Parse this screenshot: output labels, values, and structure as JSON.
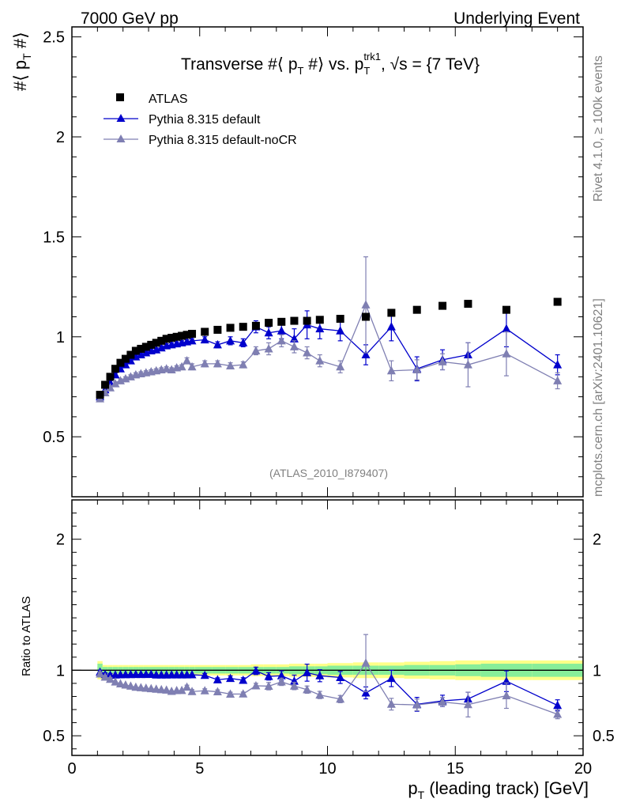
{
  "header": {
    "left": "7000 GeV pp",
    "right": "Underlying Event"
  },
  "side_labels": {
    "top": "Rivet 4.1.0, ≥ 100k events",
    "bottom": "mcplots.cern.ch [arXiv:2401.10621]"
  },
  "chart_data": {
    "type": "scatter",
    "title": "Transverse #⟨ p_T #⟩ vs. p_T^trk1, √s = {7 TeV}",
    "title_parts": {
      "a": "Transverse #⟨ p",
      "a_sub": "T",
      "b": " #⟩ vs. p",
      "b_sub": "T",
      "b_sup": "trk1",
      "c": ", √s = {7 TeV}"
    },
    "ylabel": {
      "a": "#⟨ p",
      "sub": "T",
      "b": " #⟩"
    },
    "ratio_ylabel": "Ratio to ATLAS",
    "xlabel": {
      "a": "p",
      "sub": "T",
      "b": " (leading track) [GeV]"
    },
    "xlim": [
      0,
      20
    ],
    "ylim": [
      0.2,
      2.55
    ],
    "ratio_ylim": [
      0.35,
      2.3
    ],
    "xticks": [
      0,
      5,
      10,
      15,
      20
    ],
    "yticks": [
      0.5,
      1,
      1.5,
      2,
      2.5
    ],
    "ratio_yticks": [
      0.5,
      1,
      2
    ],
    "analysis_tag": "(ATLAS_2010_I879407)",
    "legend_position": "top-left",
    "series": [
      {
        "name": "ATLAS",
        "color": "#000000",
        "marker": "square",
        "x": [
          1.1,
          1.3,
          1.5,
          1.7,
          1.9,
          2.1,
          2.3,
          2.5,
          2.7,
          2.9,
          3.1,
          3.3,
          3.5,
          3.7,
          3.9,
          4.1,
          4.3,
          4.5,
          4.7,
          5.2,
          5.7,
          6.2,
          6.7,
          7.2,
          7.7,
          8.2,
          8.7,
          9.2,
          9.7,
          10.5,
          11.5,
          12.5,
          13.5,
          14.5,
          15.5,
          17.0,
          19.0
        ],
        "y": [
          0.71,
          0.76,
          0.8,
          0.84,
          0.87,
          0.89,
          0.91,
          0.93,
          0.94,
          0.95,
          0.96,
          0.97,
          0.98,
          0.99,
          0.995,
          1.0,
          1.005,
          1.01,
          1.015,
          1.025,
          1.035,
          1.045,
          1.05,
          1.055,
          1.07,
          1.075,
          1.08,
          1.08,
          1.085,
          1.09,
          1.1,
          1.12,
          1.135,
          1.155,
          1.165,
          1.135,
          1.175
        ]
      },
      {
        "name": "Pythia 8.315 default",
        "color": "#0000cc",
        "marker": "triangle",
        "x": [
          1.1,
          1.3,
          1.5,
          1.7,
          1.9,
          2.1,
          2.3,
          2.5,
          2.7,
          2.9,
          3.1,
          3.3,
          3.5,
          3.7,
          3.9,
          4.1,
          4.3,
          4.5,
          4.7,
          5.2,
          5.7,
          6.2,
          6.7,
          7.2,
          7.7,
          8.2,
          8.7,
          9.2,
          9.7,
          10.5,
          11.5,
          12.5,
          13.5,
          14.5,
          15.5,
          17.0,
          19.0
        ],
        "y": [
          0.7,
          0.735,
          0.77,
          0.81,
          0.84,
          0.86,
          0.88,
          0.9,
          0.91,
          0.92,
          0.93,
          0.935,
          0.945,
          0.955,
          0.96,
          0.965,
          0.97,
          0.975,
          0.98,
          0.985,
          0.96,
          0.98,
          0.97,
          1.05,
          1.02,
          1.03,
          0.99,
          1.06,
          1.04,
          1.03,
          0.91,
          1.05,
          0.84,
          0.885,
          0.91,
          1.04,
          0.86
        ],
        "err": [
          0.01,
          0.01,
          0.01,
          0.01,
          0.01,
          0.01,
          0.01,
          0.01,
          0.01,
          0.01,
          0.01,
          0.01,
          0.01,
          0.01,
          0.01,
          0.01,
          0.01,
          0.01,
          0.01,
          0.015,
          0.015,
          0.02,
          0.02,
          0.03,
          0.03,
          0.04,
          0.05,
          0.07,
          0.05,
          0.05,
          0.05,
          0.07,
          0.06,
          0.05,
          0.06,
          0.09,
          0.05
        ]
      },
      {
        "name": "Pythia 8.315 default-noCR",
        "color": "#7f7fb2",
        "marker": "triangle",
        "x": [
          1.1,
          1.3,
          1.5,
          1.7,
          1.9,
          2.1,
          2.3,
          2.5,
          2.7,
          2.9,
          3.1,
          3.3,
          3.5,
          3.7,
          3.9,
          4.1,
          4.3,
          4.5,
          4.7,
          5.2,
          5.7,
          6.2,
          6.7,
          7.2,
          7.7,
          8.2,
          8.7,
          9.2,
          9.7,
          10.5,
          11.5,
          12.5,
          13.5,
          14.5,
          15.5,
          17.0,
          19.0
        ],
        "y": [
          0.69,
          0.72,
          0.745,
          0.765,
          0.78,
          0.79,
          0.8,
          0.81,
          0.815,
          0.82,
          0.825,
          0.83,
          0.835,
          0.84,
          0.835,
          0.845,
          0.85,
          0.88,
          0.85,
          0.865,
          0.865,
          0.855,
          0.86,
          0.93,
          0.94,
          0.98,
          0.95,
          0.92,
          0.88,
          0.85,
          1.16,
          0.83,
          0.835,
          0.875,
          0.86,
          0.915,
          0.78
        ],
        "err": [
          0.01,
          0.01,
          0.01,
          0.01,
          0.01,
          0.01,
          0.01,
          0.01,
          0.01,
          0.01,
          0.01,
          0.01,
          0.01,
          0.01,
          0.01,
          0.01,
          0.01,
          0.015,
          0.015,
          0.015,
          0.015,
          0.015,
          0.015,
          0.02,
          0.03,
          0.03,
          0.03,
          0.03,
          0.03,
          0.03,
          0.24,
          0.05,
          0.05,
          0.04,
          0.11,
          0.11,
          0.04
        ]
      }
    ],
    "ratio_band": {
      "x_edges": [
        1.0,
        1.2,
        1.4,
        1.6,
        1.8,
        2.0,
        2.2,
        2.4,
        2.6,
        2.8,
        3.0,
        3.2,
        3.4,
        3.6,
        3.8,
        4.0,
        4.2,
        4.4,
        4.6,
        4.8,
        5.5,
        6.0,
        6.5,
        7.0,
        7.5,
        8.0,
        8.5,
        9.0,
        9.5,
        10.0,
        11.0,
        12.0,
        13.0,
        14.0,
        15.0,
        16.0,
        18.0,
        20.0
      ],
      "green_half": [
        0.05,
        0.025,
        0.025,
        0.025,
        0.025,
        0.025,
        0.025,
        0.025,
        0.025,
        0.025,
        0.025,
        0.025,
        0.025,
        0.025,
        0.025,
        0.025,
        0.025,
        0.025,
        0.025,
        0.025,
        0.025,
        0.025,
        0.025,
        0.025,
        0.025,
        0.025,
        0.03,
        0.03,
        0.03,
        0.035,
        0.035,
        0.035,
        0.04,
        0.04,
        0.045,
        0.05,
        0.05
      ],
      "yellow_half": [
        0.07,
        0.04,
        0.04,
        0.04,
        0.04,
        0.04,
        0.04,
        0.04,
        0.04,
        0.04,
        0.04,
        0.04,
        0.04,
        0.04,
        0.04,
        0.04,
        0.04,
        0.04,
        0.04,
        0.04,
        0.04,
        0.04,
        0.04,
        0.045,
        0.045,
        0.045,
        0.05,
        0.05,
        0.05,
        0.055,
        0.06,
        0.06,
        0.065,
        0.07,
        0.075,
        0.075,
        0.075
      ]
    }
  }
}
